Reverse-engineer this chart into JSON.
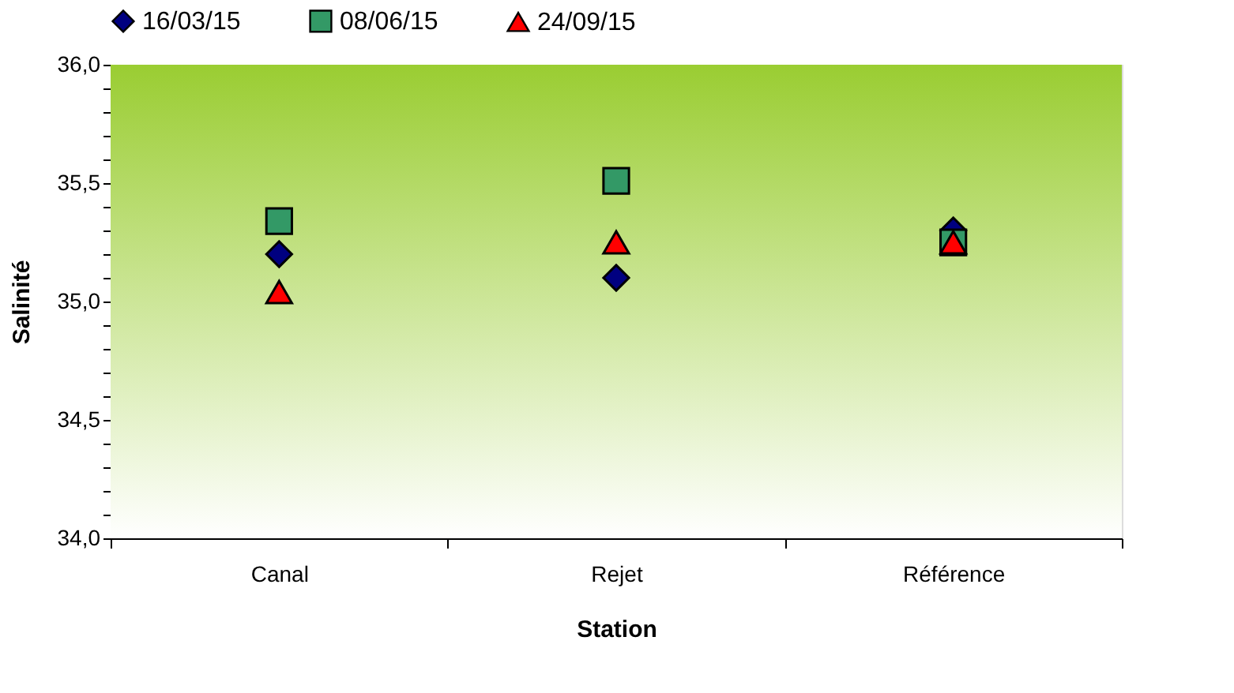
{
  "chart_data": {
    "type": "scatter",
    "xlabel": "Station",
    "ylabel": "Salinité",
    "categories": [
      "Canal",
      "Rejet",
      "Référence"
    ],
    "series": [
      {
        "name": "16/03/15",
        "color": "#000080",
        "marker": "diamond",
        "values": [
          35.2,
          35.1,
          35.3
        ]
      },
      {
        "name": "08/06/15",
        "color": "#339966",
        "marker": "square",
        "values": [
          35.34,
          35.51,
          35.25
        ]
      },
      {
        "name": "24/09/15",
        "color": "#ff0000",
        "marker": "triangle",
        "values": [
          35.04,
          35.25,
          35.25
        ]
      }
    ],
    "ylim": [
      34,
      36
    ],
    "yticks": [
      {
        "value": 34,
        "label": "34,0"
      },
      {
        "value": 34.1,
        "label": null
      },
      {
        "value": 34.2,
        "label": null
      },
      {
        "value": 34.3,
        "label": null
      },
      {
        "value": 34.4,
        "label": null
      },
      {
        "value": 34.5,
        "label": "34,5"
      },
      {
        "value": 34.6,
        "label": null
      },
      {
        "value": 34.7,
        "label": null
      },
      {
        "value": 34.8,
        "label": null
      },
      {
        "value": 34.9,
        "label": null
      },
      {
        "value": 35,
        "label": "35,0"
      },
      {
        "value": 35.1,
        "label": null
      },
      {
        "value": 35.2,
        "label": null
      },
      {
        "value": 35.3,
        "label": null
      },
      {
        "value": 35.4,
        "label": null
      },
      {
        "value": 35.5,
        "label": "35,5"
      },
      {
        "value": 35.6,
        "label": null
      },
      {
        "value": 35.7,
        "label": null
      },
      {
        "value": 35.8,
        "label": null
      },
      {
        "value": 35.9,
        "label": null
      },
      {
        "value": 36,
        "label": "36,0"
      }
    ],
    "legend": "top"
  }
}
